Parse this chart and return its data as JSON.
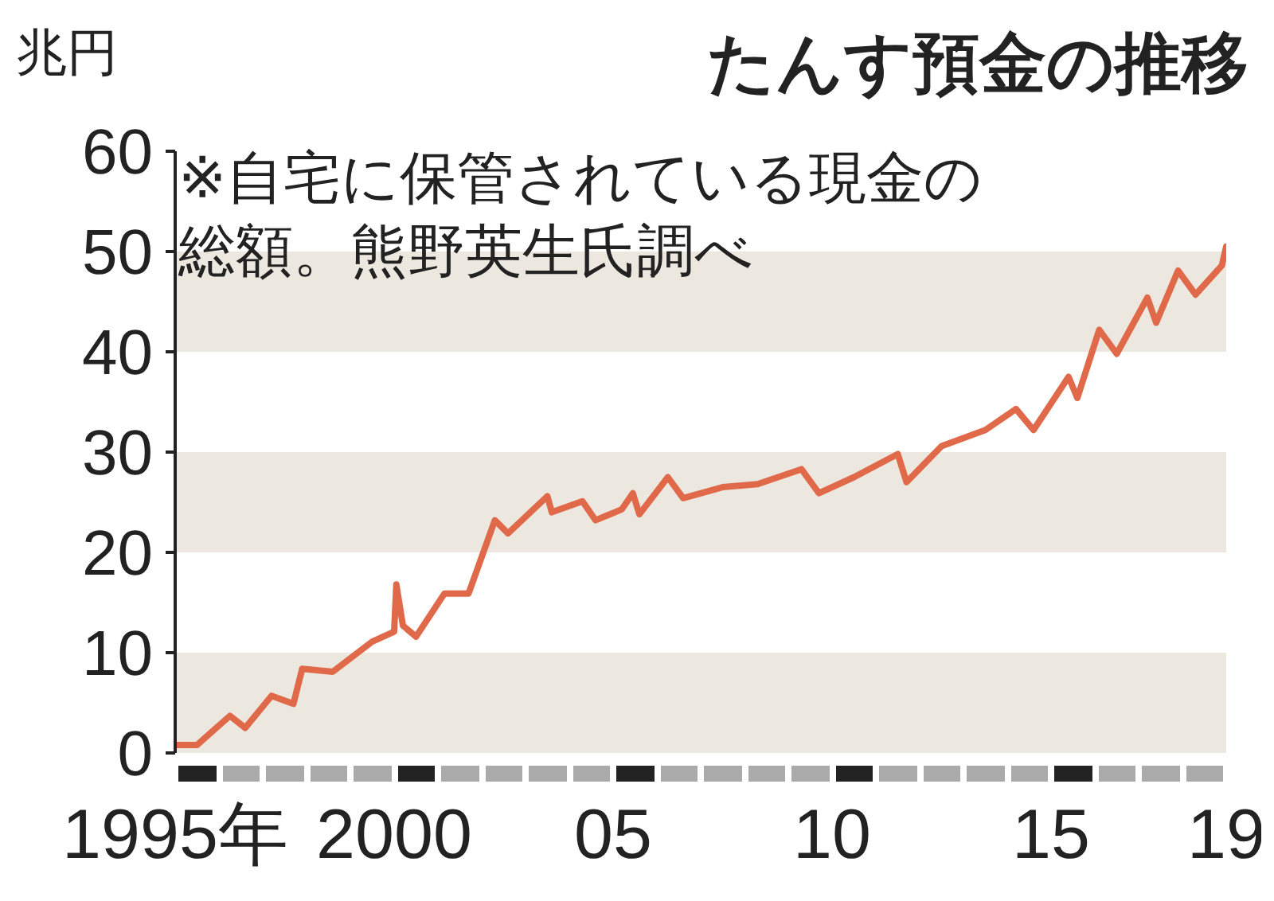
{
  "chart_data": {
    "type": "line",
    "title": "たんす預金の推移",
    "ylabel": "兆円",
    "annotations": [
      "※自宅に保管されている現金の総額。熊野英生氏調べ"
    ],
    "x": [
      1995.0,
      1995.5,
      1996.25,
      1996.6,
      1997.2,
      1997.7,
      1997.9,
      1998.6,
      1999.5,
      2000.0,
      2000.05,
      2000.2,
      2000.5,
      2001.15,
      2001.7,
      2002.3,
      2002.6,
      2003.5,
      2003.6,
      2004.3,
      2004.6,
      2005.2,
      2005.45,
      2005.6,
      2006.25,
      2006.6,
      2007.5,
      2008.3,
      2009.3,
      2009.7,
      2010.5,
      2011.5,
      2011.7,
      2012.5,
      2013.5,
      2014.2,
      2014.6,
      2015.4,
      2015.6,
      2016.1,
      2016.5,
      2017.2,
      2017.4,
      2017.9,
      2018.3,
      2018.9,
      2019.0
    ],
    "series": [
      {
        "color": "#e0694a",
        "values": [
          0.8,
          0.8,
          3.7,
          2.5,
          5.7,
          4.9,
          8.4,
          8.1,
          11.1,
          12.1,
          16.8,
          12.7,
          11.6,
          15.9,
          15.9,
          23.2,
          21.9,
          25.6,
          24.0,
          25.1,
          23.2,
          24.3,
          25.9,
          23.8,
          27.5,
          25.4,
          26.5,
          26.8,
          28.3,
          25.9,
          27.5,
          29.8,
          27.0,
          30.6,
          32.2,
          34.3,
          32.2,
          37.5,
          35.4,
          42.2,
          39.8,
          45.4,
          42.9,
          48.1,
          45.7,
          48.6,
          50.5
        ]
      }
    ],
    "xlim": [
      1995,
      2019
    ],
    "xticks": [
      {
        "value": 1995,
        "label": "1995年"
      },
      2000,
      {
        "value": 2005,
        "label": "05"
      },
      {
        "value": 2010,
        "label": "10"
      },
      {
        "value": 2015,
        "label": "15"
      },
      {
        "value": 2019,
        "label": "19"
      }
    ],
    "ylim": [
      0,
      60
    ],
    "yticks": [
      0,
      10,
      20,
      30,
      40,
      50,
      60
    ],
    "bands": [
      {
        "axis": "y",
        "from": 0,
        "to": 10,
        "color": "#ede8df"
      },
      {
        "axis": "y",
        "from": 20,
        "to": 30,
        "color": "#ede8df"
      },
      {
        "axis": "y",
        "from": 40,
        "to": 50,
        "color": "#ede8df"
      }
    ],
    "grid": false,
    "legend": false,
    "marker": "none",
    "line_style": "solid"
  }
}
